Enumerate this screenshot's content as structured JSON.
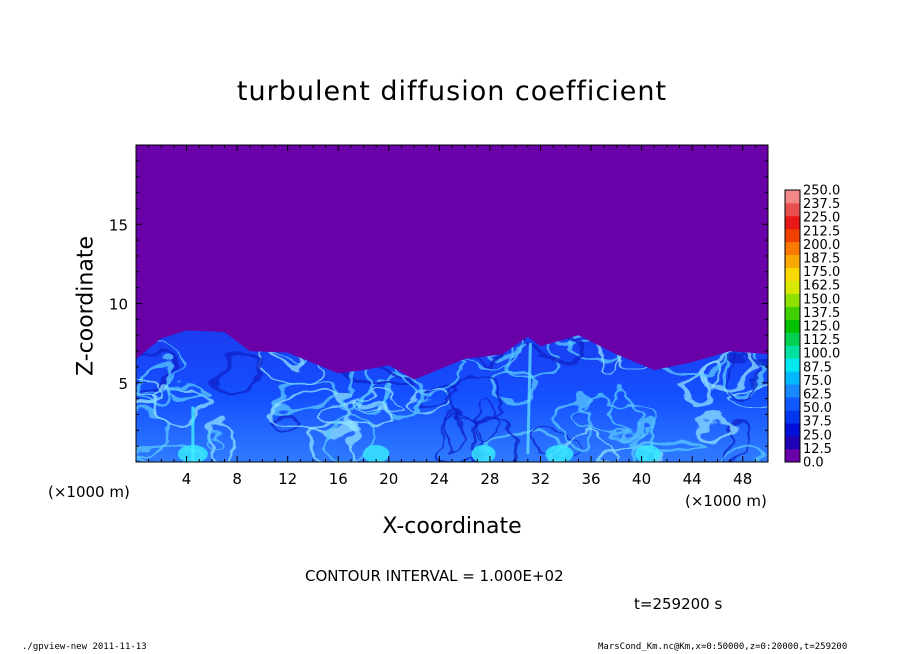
{
  "chart_data": {
    "type": "heatmap",
    "title": "turbulent diffusion coefficient",
    "xlabel": "X-coordinate",
    "ylabel": "Z-coordinate",
    "x_unit_label": "(×1000 m)",
    "xlim": [
      0,
      50
    ],
    "ylim": [
      0,
      20
    ],
    "xticks": [
      4,
      8,
      12,
      16,
      20,
      24,
      28,
      32,
      36,
      40,
      44,
      48
    ],
    "yticks": [
      5,
      10,
      15
    ],
    "background_value": 0.0,
    "turbulent_layer": {
      "top_height_profile": [
        {
          "x": 0,
          "z": 6.5
        },
        {
          "x": 2,
          "z": 7.8
        },
        {
          "x": 4,
          "z": 8.3
        },
        {
          "x": 7,
          "z": 8.2
        },
        {
          "x": 9,
          "z": 7.0
        },
        {
          "x": 12,
          "z": 6.9
        },
        {
          "x": 16,
          "z": 5.6
        },
        {
          "x": 18,
          "z": 5.8
        },
        {
          "x": 20,
          "z": 6.1
        },
        {
          "x": 22,
          "z": 5.2
        },
        {
          "x": 26,
          "z": 6.5
        },
        {
          "x": 29,
          "z": 6.8
        },
        {
          "x": 31,
          "z": 7.9
        },
        {
          "x": 32,
          "z": 7.3
        },
        {
          "x": 35,
          "z": 8.0
        },
        {
          "x": 38,
          "z": 6.8
        },
        {
          "x": 41,
          "z": 5.8
        },
        {
          "x": 44,
          "z": 6.3
        },
        {
          "x": 47,
          "z": 7.0
        },
        {
          "x": 50,
          "z": 6.8
        }
      ],
      "typical_value_range": [
        25.0,
        87.5
      ]
    },
    "colorbar": {
      "min": 0.0,
      "max": 250.0,
      "labels": [
        "250.0",
        "237.5",
        "225.0",
        "212.5",
        "200.0",
        "187.5",
        "175.0",
        "162.5",
        "150.0",
        "137.5",
        "125.0",
        "112.5",
        "100.0",
        "87.5",
        "75.0",
        "62.5",
        "50.0",
        "37.5",
        "25.0",
        "12.5",
        "0.0"
      ],
      "colors": [
        "#6a00a8",
        "#2000b4",
        "#0010d8",
        "#0038f0",
        "#1058ff",
        "#1888ff",
        "#00b8ff",
        "#00e8f0",
        "#00e0a0",
        "#00d050",
        "#00c000",
        "#40d000",
        "#90e000",
        "#d8e800",
        "#f8d800",
        "#f8a800",
        "#f87800",
        "#f04000",
        "#e81818",
        "#e85050",
        "#f08888"
      ]
    },
    "contour_interval": "CONTOUR INTERVAL = 1.000E+02",
    "time_label": "t=259200 s",
    "footer_left": "./gpview-new   2011-11-13",
    "footer_right": "MarsCond_Km.nc@Km,x=0:50000,z=0:20000,t=259200"
  }
}
